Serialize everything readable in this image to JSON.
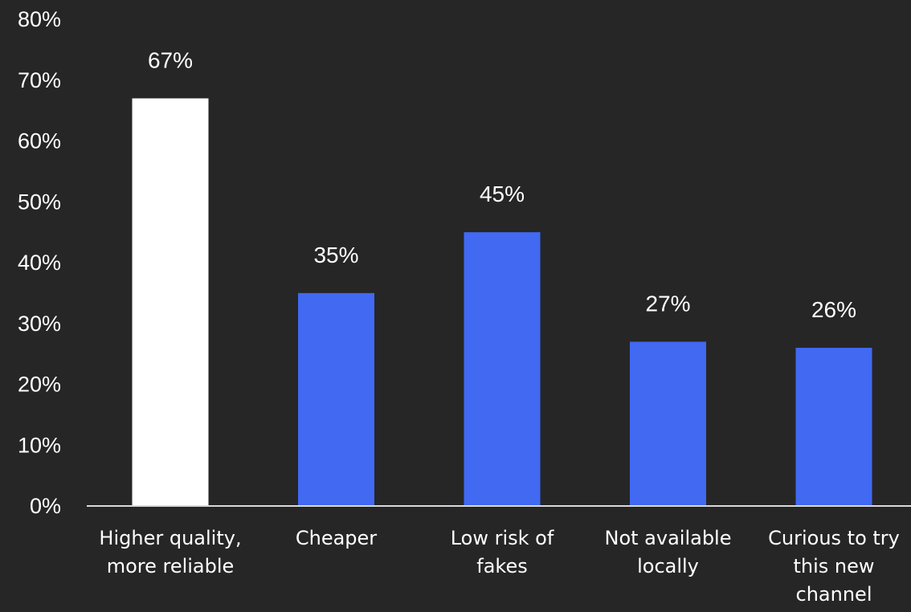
{
  "chart_data": {
    "type": "bar",
    "categories": [
      [
        "Higher quality,",
        "more reliable"
      ],
      [
        "Cheaper"
      ],
      [
        "Low risk of",
        "fakes"
      ],
      [
        "Not available",
        "locally"
      ],
      [
        "Curious to try",
        "this new",
        "channel"
      ]
    ],
    "values": [
      67,
      35,
      45,
      27,
      26
    ],
    "data_labels": [
      "67%",
      "35%",
      "45%",
      "27%",
      "26%"
    ],
    "y_ticks": [
      "0%",
      "10%",
      "20%",
      "30%",
      "40%",
      "50%",
      "60%",
      "70%",
      "80%"
    ],
    "ylim": [
      0,
      80
    ],
    "grid": false,
    "legend": "none",
    "title": "",
    "xlabel": "",
    "ylabel": ""
  },
  "colors": {
    "background": "#262626",
    "highlight_bar": "#ffffff",
    "bar": "#4169f2",
    "text": "#ffffff",
    "axis_line": "#d9d9d9"
  }
}
